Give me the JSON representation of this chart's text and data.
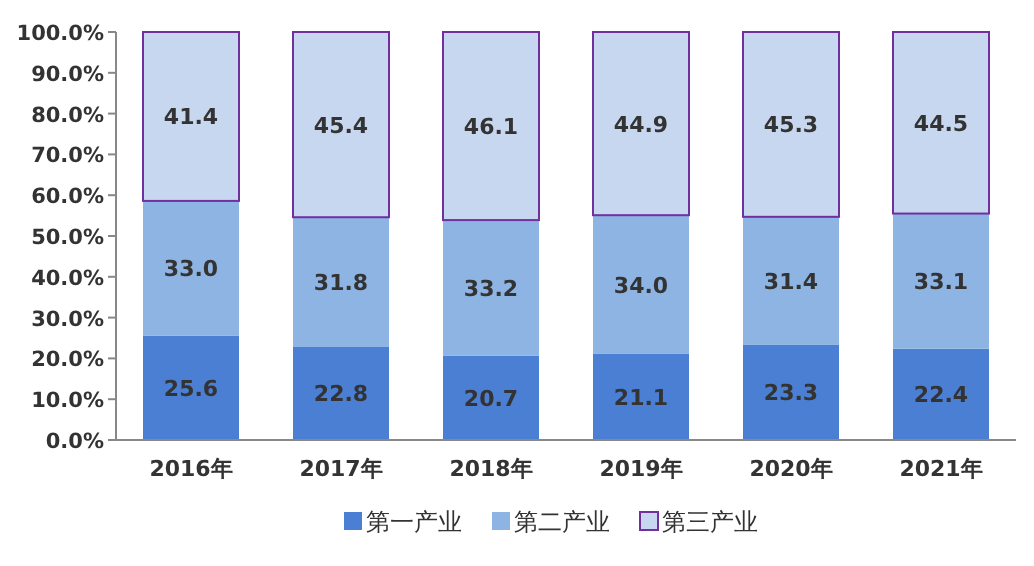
{
  "chart_data": {
    "type": "bar",
    "stacked": true,
    "categories": [
      "2016年",
      "2017年",
      "2018年",
      "2019年",
      "2020年",
      "2021年"
    ],
    "series": [
      {
        "name": "第一产业",
        "color": "#4a7fd3",
        "values": [
          25.6,
          22.8,
          20.7,
          21.1,
          23.3,
          22.4
        ],
        "value_labels": [
          "25.6",
          "22.8",
          "20.7",
          "21.1",
          "23.3",
          "22.4"
        ]
      },
      {
        "name": "第二产业",
        "color": "#8db4e3",
        "values": [
          33.0,
          31.8,
          33.2,
          34.0,
          31.4,
          33.1
        ],
        "value_labels": [
          "33.0",
          "31.8",
          "33.2",
          "34.0",
          "31.4",
          "33.1"
        ]
      },
      {
        "name": "第三产业",
        "color": "#c8d7f0",
        "values": [
          41.4,
          45.4,
          46.1,
          44.9,
          45.3,
          44.5
        ],
        "value_labels": [
          "41.4",
          "45.4",
          "46.1",
          "44.9",
          "45.3",
          "44.5"
        ]
      }
    ],
    "ylim": [
      0,
      100
    ],
    "yticks": [
      {
        "value": 0,
        "label": "0.0%"
      },
      {
        "value": 10,
        "label": "10.0%"
      },
      {
        "value": 20,
        "label": "20.0%"
      },
      {
        "value": 30,
        "label": "30.0%"
      },
      {
        "value": 40,
        "label": "40.0%"
      },
      {
        "value": 50,
        "label": "50.0%"
      },
      {
        "value": 60,
        "label": "60.0%"
      },
      {
        "value": 70,
        "label": "70.0%"
      },
      {
        "value": 80,
        "label": "80.0%"
      },
      {
        "value": 90,
        "label": "90.0%"
      },
      {
        "value": 100,
        "label": "100.0%"
      }
    ],
    "legend": "bottom"
  }
}
